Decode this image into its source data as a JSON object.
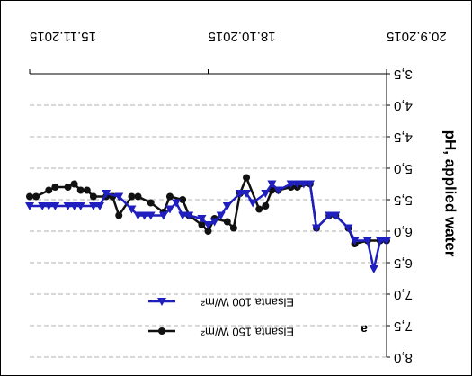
{
  "chart_data": {
    "type": "line",
    "y_label": "pH, applied water",
    "annotation": "a",
    "xlim": [
      "2015-09-20",
      "2015-11-15"
    ],
    "xticks": [
      {
        "value": "2015-09-20",
        "label": "20.9.2015"
      },
      {
        "value": "2015-10-18",
        "label": "18.10.2015"
      },
      {
        "value": "2015-11-15",
        "label": "15.11.2015"
      }
    ],
    "ylim": [
      3.5,
      8.0
    ],
    "yticks": [
      {
        "value": 3.5,
        "label": "3,5"
      },
      {
        "value": 4.0,
        "label": "4,0"
      },
      {
        "value": 4.5,
        "label": "4,5"
      },
      {
        "value": 5.0,
        "label": "5,0"
      },
      {
        "value": 5.5,
        "label": "5,5"
      },
      {
        "value": 6.0,
        "label": "6,0"
      },
      {
        "value": 6.5,
        "label": "6,5"
      },
      {
        "value": 7.0,
        "label": "7,0"
      },
      {
        "value": 7.5,
        "label": "7,5"
      },
      {
        "value": 8.0,
        "label": "8,0"
      }
    ],
    "grid": true,
    "rotated_180": true,
    "series": [
      {
        "name": "Elsanta 150 W/m²",
        "color": "#111111",
        "marker": "circle",
        "x": [
          "2015-09-20",
          "2015-09-21",
          "2015-09-23",
          "2015-09-25",
          "2015-09-26",
          "2015-09-28",
          "2015-09-29",
          "2015-10-01",
          "2015-10-02",
          "2015-10-04",
          "2015-10-05",
          "2015-10-07",
          "2015-10-08",
          "2015-10-09",
          "2015-10-10",
          "2015-10-12",
          "2015-10-13",
          "2015-10-14",
          "2015-10-15",
          "2015-10-17",
          "2015-10-18",
          "2015-10-19",
          "2015-10-21",
          "2015-10-22",
          "2015-10-24",
          "2015-10-25",
          "2015-10-27",
          "2015-10-29",
          "2015-10-30",
          "2015-11-01",
          "2015-11-02",
          "2015-11-03",
          "2015-11-05",
          "2015-11-06",
          "2015-11-07",
          "2015-11-08",
          "2015-11-09",
          "2015-11-11",
          "2015-11-12",
          "2015-11-14",
          "2015-11-15"
        ],
        "values": [
          6.15,
          6.15,
          6.15,
          6.2,
          5.95,
          5.75,
          5.75,
          5.95,
          5.25,
          5.3,
          5.3,
          5.35,
          5.35,
          5.6,
          5.65,
          5.15,
          5.4,
          5.95,
          5.85,
          5.8,
          6.0,
          5.9,
          5.75,
          5.5,
          5.45,
          5.7,
          5.55,
          5.45,
          5.45,
          5.75,
          5.45,
          5.45,
          5.45,
          5.35,
          5.35,
          5.25,
          5.3,
          5.3,
          5.35,
          5.45,
          5.45
        ]
      },
      {
        "name": "Elsanta 100 W/m²",
        "color": "#1f1fbf",
        "marker": "triangle",
        "x": [
          "2015-09-20",
          "2015-09-21",
          "2015-09-22",
          "2015-09-23",
          "2015-09-25",
          "2015-09-26",
          "2015-09-28",
          "2015-09-29",
          "2015-10-01",
          "2015-10-02",
          "2015-10-03",
          "2015-10-04",
          "2015-10-05",
          "2015-10-07",
          "2015-10-08",
          "2015-10-09",
          "2015-10-11",
          "2015-10-12",
          "2015-10-13",
          "2015-10-15",
          "2015-10-16",
          "2015-10-17",
          "2015-10-18",
          "2015-10-19",
          "2015-10-21",
          "2015-10-22",
          "2015-10-23",
          "2015-10-24",
          "2015-10-25",
          "2015-10-27",
          "2015-10-28",
          "2015-10-29",
          "2015-10-30",
          "2015-11-01",
          "2015-11-03",
          "2015-11-04",
          "2015-11-05",
          "2015-11-07",
          "2015-11-08",
          "2015-11-09",
          "2015-11-11",
          "2015-11-12",
          "2015-11-13",
          "2015-11-15"
        ],
        "values": [
          6.15,
          6.15,
          6.6,
          6.15,
          6.15,
          5.95,
          5.75,
          5.75,
          5.95,
          5.25,
          5.25,
          5.25,
          5.25,
          5.35,
          5.25,
          5.4,
          5.55,
          5.4,
          5.4,
          5.6,
          5.75,
          5.85,
          5.9,
          5.8,
          5.75,
          5.75,
          5.55,
          5.65,
          5.75,
          5.75,
          5.75,
          5.75,
          5.65,
          5.45,
          5.4,
          5.6,
          5.6,
          5.6,
          5.6,
          5.6,
          5.6,
          5.6,
          5.6,
          5.6
        ]
      }
    ]
  }
}
